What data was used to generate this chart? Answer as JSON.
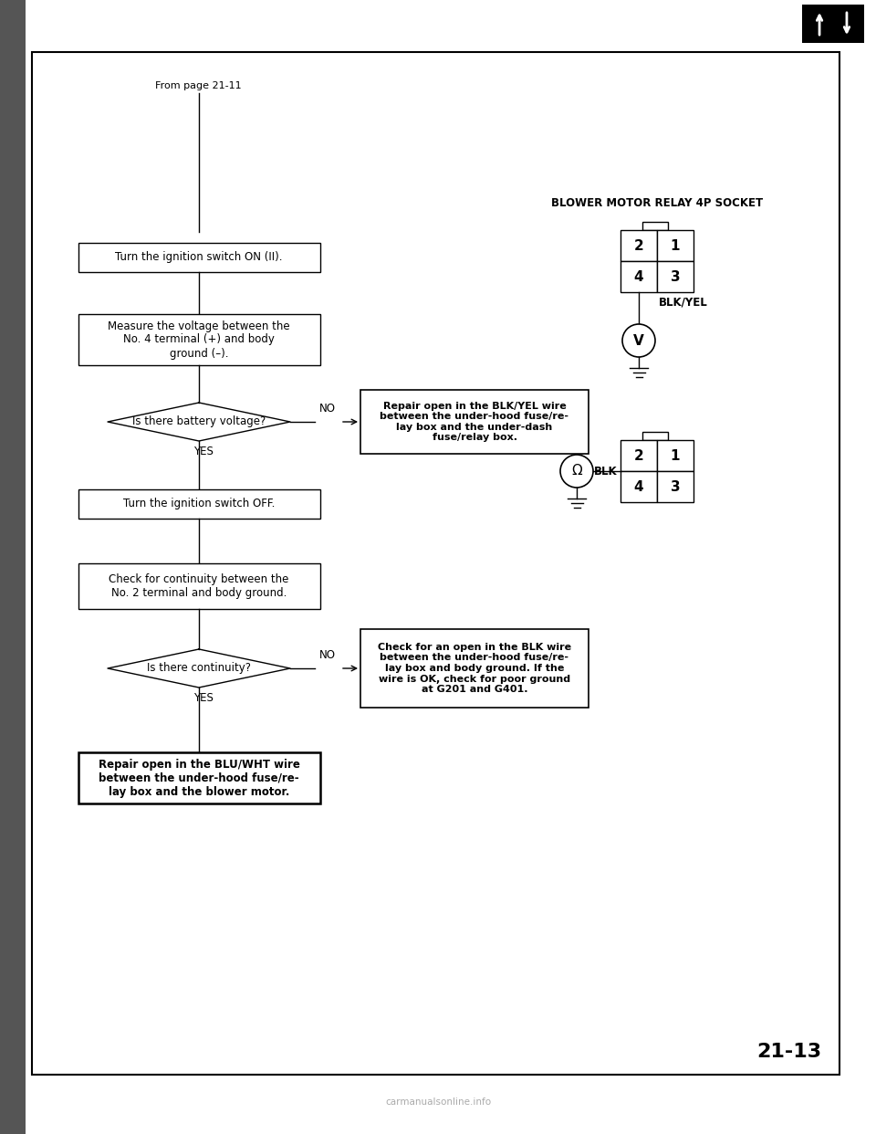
{
  "page_label": "From page 21-11",
  "flowchart_steps": [
    {
      "type": "rect",
      "text": "Turn the ignition switch ON (II).",
      "bold": false
    },
    {
      "type": "rect",
      "text": "Measure the voltage between the\nNo. 4 terminal (+) and body\nground (–).",
      "bold": false
    },
    {
      "type": "diamond",
      "text": "Is there battery voltage?",
      "bold": false
    },
    {
      "type": "rect",
      "text": "Turn the ignition switch OFF.",
      "bold": false
    },
    {
      "type": "rect",
      "text": "Check for continuity between the\nNo. 2 terminal and body ground.",
      "bold": false
    },
    {
      "type": "diamond",
      "text": "Is there continuity?",
      "bold": false
    },
    {
      "type": "rect",
      "text": "Repair open in the BLU/WHT wire\nbetween the under-hood fuse/re-\nlay box and the blower motor.",
      "bold": true
    }
  ],
  "no_boxes": [
    {
      "text": "Repair open in the BLK/YEL wire\nbetween the under-hood fuse/re-\nlay box and the under-dash\nfuse/relay box.",
      "bold": true,
      "step_index": 2
    },
    {
      "text": "Check for an open in the BLK wire\nbetween the under-hood fuse/re-\nlay box and body ground. If the\nwire is OK, check for poor ground\nat G201 and G401.",
      "bold": true,
      "step_index": 5
    }
  ],
  "relay_title": "BLOWER MOTOR RELAY 4P SOCKET",
  "relay1_cells": [
    [
      "2",
      "1"
    ],
    [
      "4",
      "3"
    ]
  ],
  "relay1_label": "BLK/YEL",
  "relay1_symbol": "V",
  "relay2_cells": [
    [
      "2",
      "1"
    ],
    [
      "4",
      "3"
    ]
  ],
  "relay2_label": "BLK",
  "relay2_symbol": "Ω",
  "page_number": "21-13",
  "bg_color": "#ffffff",
  "icon_arrows": [
    "↑",
    "↓"
  ],
  "watermark": "carmanualsonline.info"
}
